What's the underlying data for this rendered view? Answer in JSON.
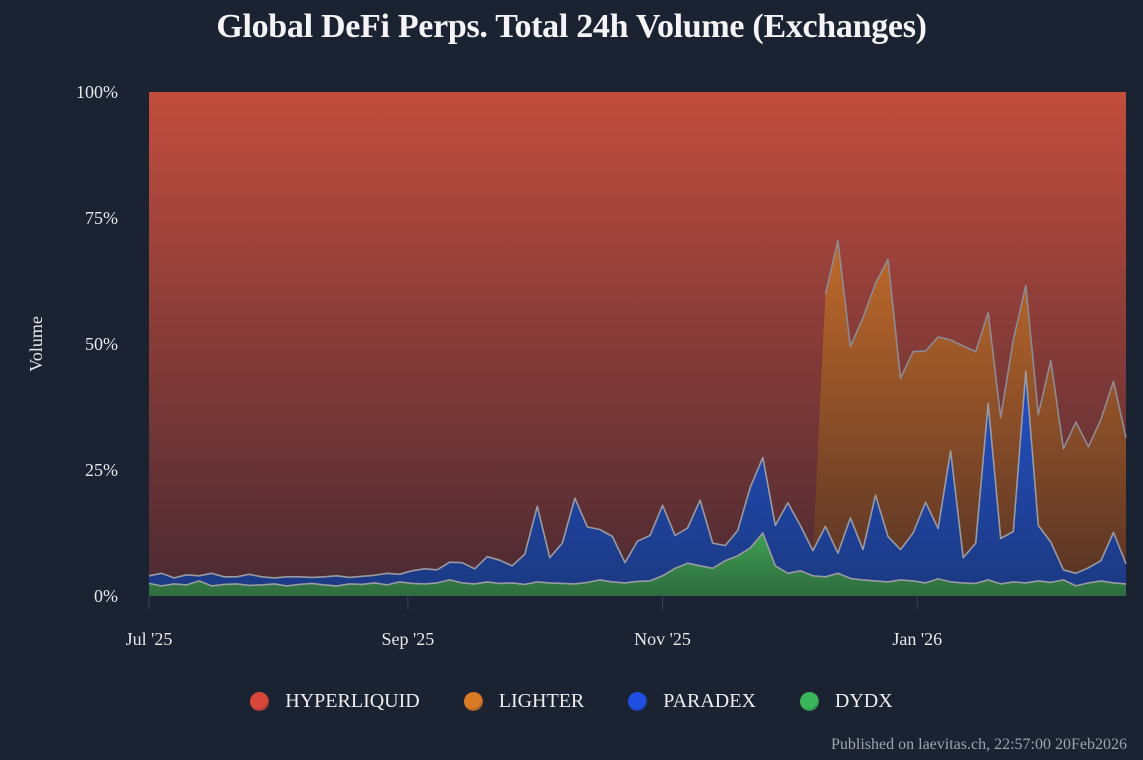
{
  "title": "Global DeFi Perps. Total 24h Volume (Exchanges)",
  "footer": "Published on laevitas.ch, 22:57:00 20Feb2026",
  "colors": {
    "background": "#1b2231",
    "HYPERLIQUID": "#c2493d",
    "LIGHTER": "#d5782a",
    "PARADEX": "#1f46b8",
    "DYDX": "#3a9a4f"
  },
  "legend": [
    {
      "label": "HYPERLIQUID",
      "color": "#d9473b"
    },
    {
      "label": "LIGHTER",
      "color": "#d97a24"
    },
    {
      "label": "PARADEX",
      "color": "#1f4fe0"
    },
    {
      "label": "DYDX",
      "color": "#3bb55a"
    }
  ],
  "chart_data": {
    "type": "area",
    "stacked": "percent",
    "title": "Global DeFi Perps. Total 24h Volume (Exchanges)",
    "xlabel": "",
    "ylabel": "Volume",
    "y_ticks": [
      "0%",
      "25%",
      "50%",
      "75%",
      "100%"
    ],
    "ylim": [
      0,
      100
    ],
    "x_ticks": [
      "Jul '25",
      "Sep '25",
      "Nov '25",
      "Jan '26"
    ],
    "x_tick_days": [
      0,
      62,
      123,
      184
    ],
    "x_range_days": [
      0,
      234
    ],
    "x_start": "2025-07-01",
    "x_step_days": 3,
    "legend_position": "bottom",
    "grid": false,
    "series_order_bottom_to_top": [
      "DYDX",
      "PARADEX",
      "LIGHTER",
      "HYPERLIQUID"
    ],
    "series": [
      {
        "name": "DYDX",
        "values": [
          2.5,
          2.0,
          2.4,
          2.2,
          3.0,
          2.0,
          2.3,
          2.4,
          2.1,
          2.2,
          2.4,
          2.0,
          2.3,
          2.5,
          2.2,
          2.0,
          2.4,
          2.3,
          2.6,
          2.2,
          2.8,
          2.5,
          2.4,
          2.6,
          3.2,
          2.6,
          2.4,
          2.8,
          2.5,
          2.6,
          2.3,
          2.8,
          2.6,
          2.5,
          2.4,
          2.7,
          3.2,
          2.8,
          2.6,
          2.9,
          3.0,
          4.0,
          5.5,
          6.5,
          6.0,
          5.5,
          7.0,
          8.0,
          9.5,
          12.5,
          6.0,
          4.5,
          5.0,
          4.0,
          3.8,
          4.5,
          3.5,
          3.2,
          3.0,
          2.8,
          3.2,
          3.0,
          2.6,
          3.4,
          2.8,
          2.6,
          2.5,
          3.2,
          2.4,
          2.8,
          2.6,
          3.0,
          2.7,
          3.2,
          2.0,
          2.6,
          3.0,
          2.6,
          2.4
        ]
      },
      {
        "name": "PARADEX",
        "values": [
          1.5,
          2.5,
          1.2,
          2.0,
          1.0,
          2.5,
          1.5,
          1.4,
          2.2,
          1.6,
          1.2,
          1.8,
          1.5,
          1.2,
          1.6,
          2.0,
          1.3,
          1.6,
          1.5,
          2.3,
          1.5,
          2.5,
          3.0,
          2.6,
          3.5,
          4.0,
          3.0,
          5.0,
          4.6,
          3.4,
          6.0,
          15.0,
          5.0,
          8.0,
          17.0,
          11.0,
          10.0,
          9.0,
          4.0,
          8.0,
          9.0,
          14.0,
          6.5,
          7.0,
          13.0,
          5.0,
          3.0,
          5.0,
          12.0,
          15.0,
          8.0,
          14.0,
          9.0,
          5.0,
          10.0,
          4.0,
          12.0,
          6.0,
          17.0,
          9.0,
          6.0,
          9.5,
          16.0,
          10.0,
          26.0,
          5.0,
          8.0,
          35.0,
          9.0,
          10.0,
          42.0,
          11.0,
          8.0,
          2.0,
          2.5,
          3.0,
          4.0,
          10.0,
          4.0
        ]
      },
      {
        "name": "LIGHTER",
        "values": [
          0,
          0,
          0,
          0,
          0,
          0,
          0,
          0,
          0,
          0,
          0,
          0,
          0,
          0,
          0,
          0,
          0,
          0,
          0,
          0,
          0,
          0,
          0,
          0,
          0,
          0,
          0,
          0,
          0,
          0,
          0,
          0,
          0,
          0,
          0,
          0,
          0,
          0,
          0,
          0,
          0,
          0,
          0,
          0,
          0,
          0,
          0,
          0,
          0,
          0,
          0,
          0,
          0,
          0,
          46.0,
          62.0,
          34.0,
          46.0,
          42.0,
          55.0,
          34.0,
          36.0,
          30.0,
          38.0,
          22.0,
          42.0,
          38.0,
          18.0,
          24.0,
          38.0,
          17.0,
          22.0,
          36.0,
          24.0,
          30.0,
          24.0,
          28.0,
          30.0,
          25.0
        ]
      }
    ],
    "HYPERLIQUID_note": "remainder to 100%"
  }
}
